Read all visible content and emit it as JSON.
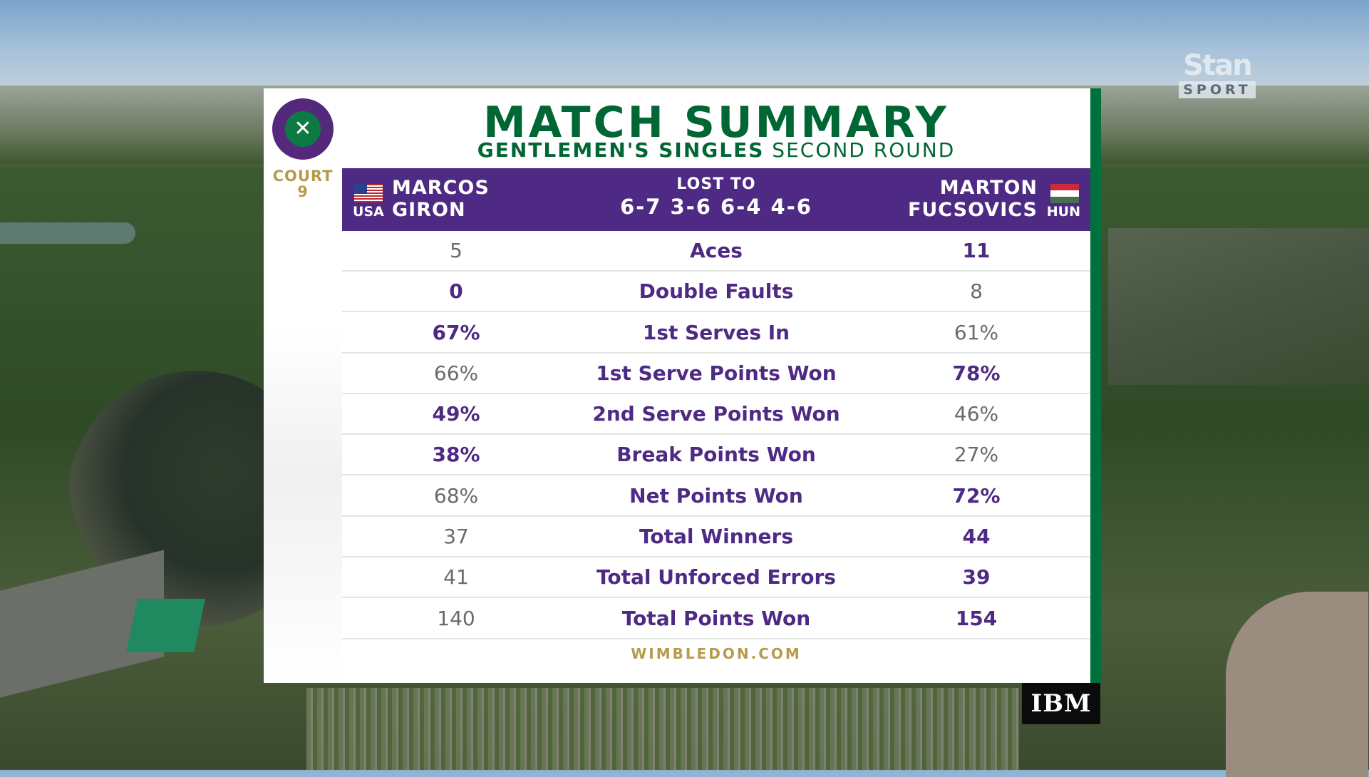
{
  "broadcaster": {
    "name": "Stan",
    "sub": "SPORT"
  },
  "court": {
    "label": "COURT",
    "number": "9"
  },
  "header": {
    "title": "MATCH SUMMARY",
    "event": "GENTLEMEN'S SINGLES",
    "round": "SECOND ROUND"
  },
  "match": {
    "player_left": {
      "first": "MARCOS",
      "last": "GIRON",
      "country": "USA"
    },
    "player_right": {
      "first": "MARTON",
      "last": "FUCSOVICS",
      "country": "HUN"
    },
    "result_label": "LOST TO",
    "score": "6-7 3-6 6-4 4-6"
  },
  "stats": [
    {
      "label": "Aces",
      "left": "5",
      "right": "11",
      "winner": "right"
    },
    {
      "label": "Double Faults",
      "left": "0",
      "right": "8",
      "winner": "left"
    },
    {
      "label": "1st Serves In",
      "left": "67%",
      "right": "61%",
      "winner": "left"
    },
    {
      "label": "1st Serve Points Won",
      "left": "66%",
      "right": "78%",
      "winner": "right"
    },
    {
      "label": "2nd Serve Points Won",
      "left": "49%",
      "right": "46%",
      "winner": "left"
    },
    {
      "label": "Break Points Won",
      "left": "38%",
      "right": "27%",
      "winner": "left"
    },
    {
      "label": "Net Points Won",
      "left": "68%",
      "right": "72%",
      "winner": "right"
    },
    {
      "label": "Total Winners",
      "left": "37",
      "right": "44",
      "winner": "right"
    },
    {
      "label": "Total Unforced Errors",
      "left": "41",
      "right": "39",
      "winner": "right"
    },
    {
      "label": "Total Points Won",
      "left": "140",
      "right": "154",
      "winner": "right"
    }
  ],
  "footer": {
    "website": "WIMBLEDON.COM",
    "sponsor": "IBM"
  },
  "icons": {
    "logo": "wimbledon-logo-icon",
    "flag_left": "usa-flag-icon",
    "flag_right": "hungary-flag-icon"
  },
  "colors": {
    "purple": "#4e2a84",
    "green": "#006633",
    "gold": "#b69b4c"
  }
}
